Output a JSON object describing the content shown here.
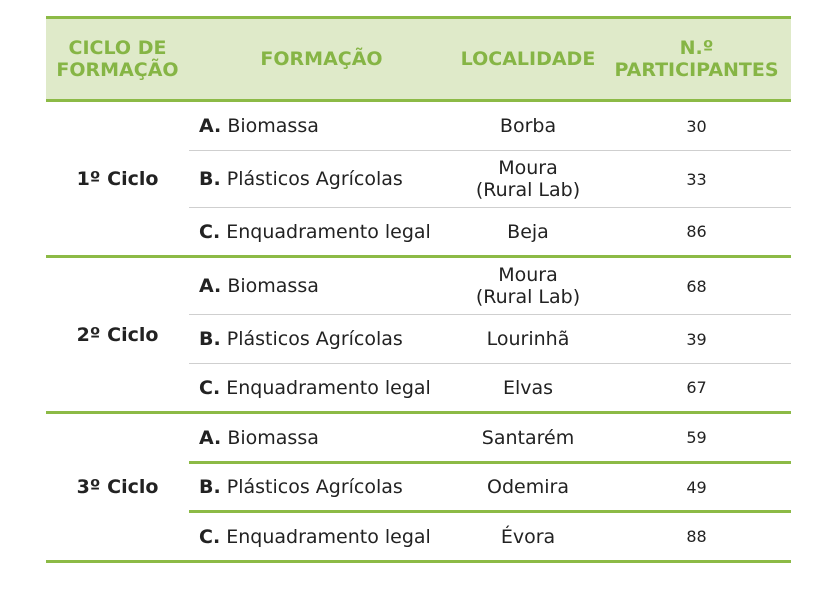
{
  "headers": {
    "ciclo_line1": "CICLO DE",
    "ciclo_line2": "FORMAÇÃO",
    "formacao": "FORMAÇÃO",
    "localidade": "LOCALIDADE",
    "part_line1": "N.º",
    "part_line2": "PARTICIPANTES"
  },
  "groups": [
    {
      "ciclo": "1º Ciclo",
      "rows": [
        {
          "letter": "A.",
          "formacao": "Biomassa",
          "loc1": "Borba",
          "loc2": "",
          "participantes": "30"
        },
        {
          "letter": "B.",
          "formacao": "Plásticos Agrícolas",
          "loc1": "Moura",
          "loc2": "(Rural Lab)",
          "participantes": "33"
        },
        {
          "letter": "C.",
          "formacao": "Enquadramento legal",
          "loc1": "Beja",
          "loc2": "",
          "participantes": "86"
        }
      ]
    },
    {
      "ciclo": "2º Ciclo",
      "rows": [
        {
          "letter": "A.",
          "formacao": "Biomassa",
          "loc1": "Moura",
          "loc2": "(Rural Lab)",
          "participantes": "68"
        },
        {
          "letter": "B.",
          "formacao": "Plásticos Agrícolas",
          "loc1": "Lourinhã",
          "loc2": "",
          "participantes": "39"
        },
        {
          "letter": "C.",
          "formacao": "Enquadramento legal",
          "loc1": "Elvas",
          "loc2": "",
          "participantes": "67"
        }
      ]
    },
    {
      "ciclo": "3º Ciclo",
      "rows": [
        {
          "letter": "A.",
          "formacao": "Biomassa",
          "loc1": "Santarém",
          "loc2": "",
          "participantes": "59"
        },
        {
          "letter": "B.",
          "formacao": "Plásticos Agrícolas",
          "loc1": "Odemira",
          "loc2": "",
          "participantes": "49"
        },
        {
          "letter": "C.",
          "formacao": "Enquadramento legal",
          "loc1": "Évora",
          "loc2": "",
          "participantes": "88"
        }
      ]
    }
  ],
  "colors": {
    "accent": "#8cba46",
    "header_bg": "#dfeac9",
    "header_text": "#86b545"
  }
}
